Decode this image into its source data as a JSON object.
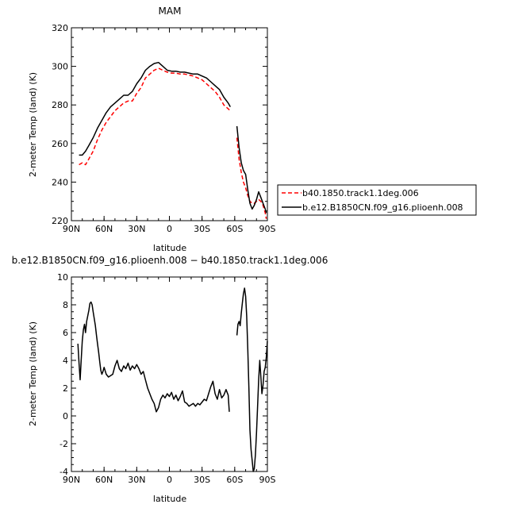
{
  "chart_data": [
    {
      "type": "line",
      "title": "MAM",
      "xlabel": "latitude",
      "ylabel": "2-meter Temp (land) (K)",
      "xticks": [
        "90N",
        "60N",
        "30N",
        "0",
        "30S",
        "60S",
        "90S"
      ],
      "xlim": [
        90,
        -90
      ],
      "ylim": [
        220,
        320
      ],
      "yticks": [
        220,
        240,
        260,
        280,
        300,
        320
      ],
      "grid": false,
      "legend": "outside-right",
      "series": [
        {
          "name": "b40.1850.track1.1deg.006",
          "color": "#ff0000",
          "style": "dashed",
          "x": [
            83,
            80,
            77,
            74,
            70,
            66,
            62,
            58,
            54,
            50,
            46,
            42,
            38,
            34,
            30,
            26,
            22,
            18,
            14,
            10,
            6,
            2,
            -2,
            -6,
            -10,
            -14,
            -18,
            -22,
            -26,
            -30,
            -34,
            -38,
            -42,
            -46,
            -50,
            -54,
            -56
          ],
          "y": [
            249,
            250,
            249,
            252,
            256,
            262,
            267,
            271,
            274,
            277,
            279,
            281,
            282,
            282,
            286,
            289,
            294,
            296,
            298,
            299,
            298,
            297,
            296.5,
            296.5,
            296,
            296,
            295.5,
            295,
            294,
            293,
            291,
            289,
            287,
            284,
            280,
            278,
            277
          ]
        },
        {
          "name": "b.e12.B1850CN.f09_g16.plioenh.008",
          "color": "#000000",
          "style": "solid",
          "x": [
            83,
            80,
            77,
            74,
            70,
            66,
            62,
            58,
            54,
            50,
            46,
            42,
            38,
            34,
            30,
            26,
            22,
            18,
            14,
            10,
            6,
            2,
            -2,
            -6,
            -10,
            -14,
            -18,
            -22,
            -26,
            -30,
            -34,
            -38,
            -42,
            -46,
            -50,
            -54,
            -56
          ],
          "y": [
            254,
            254,
            256,
            259,
            263,
            268,
            272,
            276,
            279,
            281,
            283,
            285,
            285,
            287,
            291,
            294,
            298,
            300,
            301.5,
            302,
            300,
            298,
            297.5,
            297.5,
            297,
            297,
            296.5,
            296,
            296,
            295,
            294,
            292,
            290,
            288,
            284,
            281,
            279
          ]
        },
        {
          "name": "b40.1850.track1.1deg.006",
          "color": "#ff0000",
          "style": "dashed",
          "x": [
            -62,
            -64,
            -66,
            -68,
            -70,
            -72,
            -74,
            -76,
            -78,
            -80,
            -82,
            -84,
            -86,
            -88,
            -89
          ],
          "y": [
            263,
            252,
            245,
            240,
            237,
            233,
            230,
            229,
            229,
            230,
            231,
            230,
            228,
            224,
            221
          ]
        },
        {
          "name": "b.e12.B1850CN.f09_g16.plioenh.008",
          "color": "#000000",
          "style": "solid",
          "x": [
            -62,
            -64,
            -66,
            -68,
            -70,
            -72,
            -74,
            -76,
            -78,
            -80,
            -82,
            -84,
            -86,
            -88,
            -89
          ],
          "y": [
            269,
            258,
            250,
            246,
            244,
            236,
            229,
            226,
            228,
            231,
            235,
            232,
            229,
            226,
            224
          ]
        }
      ]
    },
    {
      "type": "line",
      "title": "b.e12.B1850CN.f09_g16.plioenh.008 − b40.1850.track1.1deg.006",
      "xlabel": "latitude",
      "ylabel": "2-meter Temp (land) (K)",
      "xticks": [
        "90N",
        "60N",
        "30N",
        "0",
        "30S",
        "60S",
        "90S"
      ],
      "xlim": [
        90,
        -90
      ],
      "ylim": [
        -4,
        10
      ],
      "yticks": [
        -4,
        -2,
        0,
        2,
        4,
        6,
        8,
        10
      ],
      "grid": false,
      "series": [
        {
          "color": "#000000",
          "style": "solid",
          "x": [
            84,
            83,
            82,
            81,
            80,
            79,
            78,
            77,
            76,
            75,
            74,
            73,
            72,
            71,
            70,
            69,
            68,
            67,
            66,
            65,
            64,
            63,
            62,
            61,
            60,
            58,
            56,
            54,
            52,
            50,
            48,
            46,
            44,
            42,
            40,
            38,
            36,
            34,
            32,
            30,
            28,
            26,
            24,
            22,
            20,
            18,
            16,
            14,
            12,
            10,
            8,
            6,
            4,
            2,
            0,
            -2,
            -4,
            -6,
            -8,
            -10,
            -12,
            -14,
            -16,
            -18,
            -20,
            -22,
            -24,
            -26,
            -28,
            -30,
            -32,
            -34,
            -36,
            -38,
            -40,
            -42,
            -44,
            -46,
            -48,
            -50,
            -52,
            -54,
            -55
          ],
          "y": [
            5.2,
            3.8,
            2.6,
            4.0,
            5.4,
            6.2,
            6.6,
            6.0,
            6.8,
            7.2,
            7.6,
            8.1,
            8.2,
            8.0,
            7.5,
            7.0,
            6.5,
            5.8,
            5.2,
            4.6,
            3.9,
            3.3,
            3.0,
            3.2,
            3.5,
            3.0,
            2.8,
            2.9,
            3.0,
            3.6,
            4.0,
            3.4,
            3.2,
            3.6,
            3.4,
            3.8,
            3.3,
            3.6,
            3.4,
            3.7,
            3.4,
            3.0,
            3.2,
            2.6,
            2.0,
            1.6,
            1.2,
            0.9,
            0.3,
            0.6,
            1.2,
            1.5,
            1.3,
            1.6,
            1.4,
            1.7,
            1.2,
            1.5,
            1.1,
            1.4,
            1.8,
            1.0,
            0.9,
            0.7,
            0.8,
            0.9,
            0.7,
            0.9,
            0.8,
            1.0,
            1.2,
            1.1,
            1.6,
            2.1,
            2.5,
            1.6,
            1.2,
            1.9,
            1.3,
            1.5,
            1.9,
            1.5,
            0.3
          ]
        },
        {
          "color": "#000000",
          "style": "solid",
          "x": [
            -62,
            -63,
            -64,
            -65,
            -66,
            -67,
            -68,
            -69,
            -70,
            -71,
            -72,
            -73,
            -74,
            -75,
            -76,
            -77,
            -78,
            -79,
            -80,
            -81,
            -82,
            -83,
            -84,
            -85,
            -86,
            -87,
            -88,
            -89,
            -90
          ],
          "y": [
            5.8,
            6.6,
            6.8,
            6.5,
            7.4,
            8.1,
            8.8,
            9.2,
            8.6,
            7.2,
            4.8,
            2.0,
            -1.0,
            -2.4,
            -3.2,
            -4.0,
            -3.8,
            -2.8,
            -1.2,
            0.6,
            2.6,
            4.0,
            2.8,
            1.6,
            2.2,
            3.2,
            3.5,
            4.2,
            5.4
          ]
        }
      ]
    }
  ]
}
